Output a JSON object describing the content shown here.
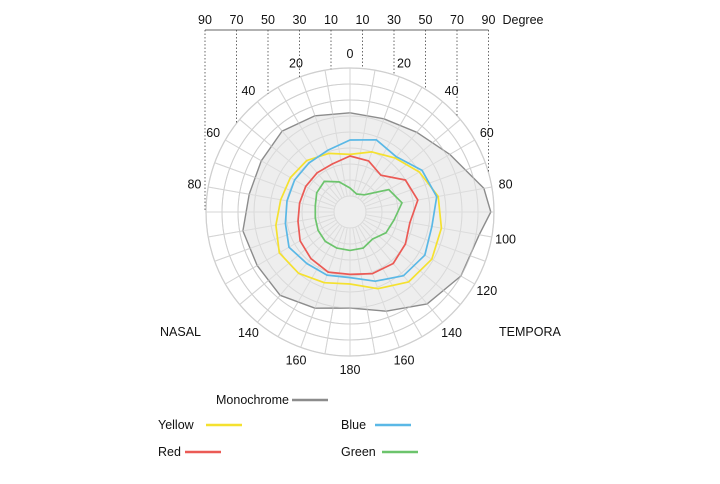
{
  "chart_data": {
    "type": "polar-line",
    "top_scale": {
      "ticks": [
        "90",
        "70",
        "50",
        "30",
        "10",
        "10",
        "30",
        "50",
        "70",
        "90"
      ],
      "unit_label": "Degree"
    },
    "angle_labels": [
      "0",
      "20",
      "40",
      "60",
      "80",
      "100",
      "120",
      "140",
      "160",
      "180",
      "160",
      "140",
      "80",
      "60",
      "40",
      "20"
    ],
    "side_labels": {
      "left": "NASAL",
      "right": "TEMPORA"
    },
    "radial_range": [
      0,
      90
    ],
    "series": [
      {
        "name": "Monochrome",
        "color": "#8c8c8c",
        "fill": "#ebebeb",
        "points": [
          [
            0,
            62
          ],
          [
            20,
            62
          ],
          [
            40,
            65
          ],
          [
            60,
            72
          ],
          [
            80,
            85
          ],
          [
            90,
            88
          ],
          [
            100,
            82
          ],
          [
            120,
            80
          ],
          [
            140,
            75
          ],
          [
            160,
            66
          ],
          [
            180,
            60
          ],
          [
            200,
            64
          ],
          [
            220,
            68
          ],
          [
            240,
            67
          ],
          [
            260,
            68
          ],
          [
            280,
            64
          ],
          [
            300,
            64
          ],
          [
            320,
            66
          ],
          [
            340,
            64
          ]
        ]
      },
      {
        "name": "Yellow",
        "color": "#f5e12f",
        "points": [
          [
            0,
            36
          ],
          [
            20,
            40
          ],
          [
            40,
            44
          ],
          [
            60,
            50
          ],
          [
            80,
            56
          ],
          [
            100,
            58
          ],
          [
            120,
            59
          ],
          [
            140,
            57
          ],
          [
            160,
            51
          ],
          [
            180,
            45
          ],
          [
            200,
            47
          ],
          [
            220,
            50
          ],
          [
            240,
            51
          ],
          [
            260,
            47
          ],
          [
            280,
            44
          ],
          [
            300,
            43
          ],
          [
            320,
            42
          ],
          [
            340,
            39
          ]
        ]
      },
      {
        "name": "Blue",
        "color": "#5ab8e6",
        "points": [
          [
            0,
            45
          ],
          [
            20,
            48
          ],
          [
            40,
            45
          ],
          [
            60,
            52
          ],
          [
            80,
            55
          ],
          [
            100,
            52
          ],
          [
            120,
            54
          ],
          [
            140,
            52
          ],
          [
            160,
            46
          ],
          [
            180,
            41
          ],
          [
            200,
            42
          ],
          [
            220,
            42
          ],
          [
            240,
            44
          ],
          [
            260,
            41
          ],
          [
            280,
            40
          ],
          [
            300,
            40
          ],
          [
            320,
            40
          ],
          [
            340,
            41
          ]
        ]
      },
      {
        "name": "Red",
        "color": "#eb5a55",
        "points": [
          [
            0,
            35
          ],
          [
            20,
            34
          ],
          [
            40,
            30
          ],
          [
            60,
            40
          ],
          [
            80,
            43
          ],
          [
            100,
            38
          ],
          [
            120,
            40
          ],
          [
            140,
            42
          ],
          [
            160,
            41
          ],
          [
            180,
            39
          ],
          [
            200,
            40
          ],
          [
            220,
            38
          ],
          [
            240,
            36
          ],
          [
            260,
            33
          ],
          [
            280,
            32
          ],
          [
            300,
            32
          ],
          [
            320,
            32
          ],
          [
            340,
            32
          ]
        ]
      },
      {
        "name": "Green",
        "color": "#6cc46c",
        "points": [
          [
            0,
            15
          ],
          [
            20,
            12
          ],
          [
            40,
            14
          ],
          [
            60,
            28
          ],
          [
            80,
            33
          ],
          [
            100,
            28
          ],
          [
            120,
            26
          ],
          [
            140,
            22
          ],
          [
            160,
            24
          ],
          [
            180,
            24
          ],
          [
            200,
            24
          ],
          [
            220,
            24
          ],
          [
            240,
            23
          ],
          [
            260,
            22
          ],
          [
            280,
            22
          ],
          [
            300,
            24
          ],
          [
            320,
            25
          ],
          [
            340,
            20
          ]
        ]
      }
    ],
    "legend": {
      "placement": "bottom",
      "entries": [
        "Monochrome",
        "Yellow",
        "Red",
        "Blue",
        "Green"
      ]
    }
  }
}
